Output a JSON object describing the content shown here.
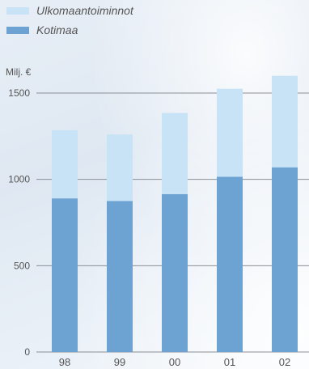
{
  "chart_data": {
    "type": "bar",
    "stacked": true,
    "categories": [
      "98",
      "99",
      "00",
      "01",
      "02"
    ],
    "series": [
      {
        "name": "Kotimaa",
        "values": [
          890,
          875,
          915,
          1015,
          1070
        ],
        "color": "#6ca3d2"
      },
      {
        "name": "Ulkomaantoiminnot",
        "values": [
          395,
          385,
          470,
          510,
          530
        ],
        "color": "#c9e3f6"
      }
    ],
    "legend_order": [
      1,
      0
    ],
    "ylabel": "Milj. €",
    "yticks": [
      0,
      500,
      1000,
      1500
    ],
    "ylim": [
      0,
      1600
    ],
    "grid": true,
    "legend_position": "top-left"
  }
}
